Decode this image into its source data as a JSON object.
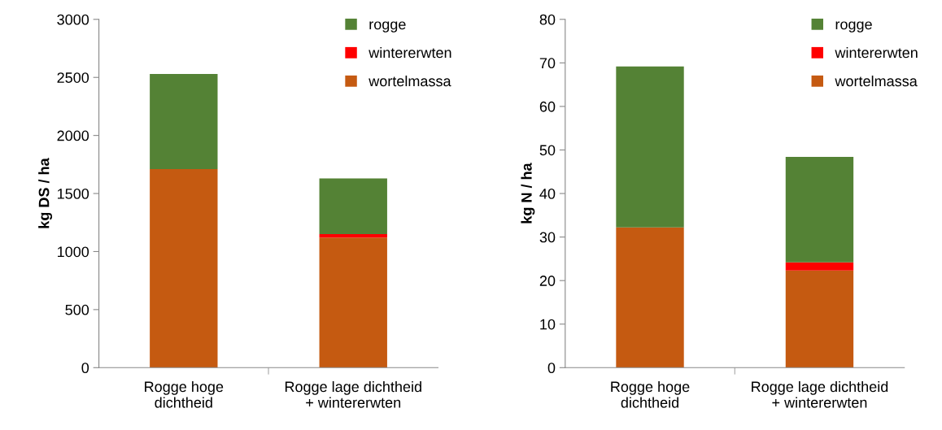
{
  "chart_data": [
    {
      "type": "bar",
      "stacked": true,
      "ylabel": "kg DS / ha",
      "categories": [
        "Rogge hoge\ndichtheid",
        "Rogge lage dichtheid\n+ wintererwten"
      ],
      "series": [
        {
          "name": "wortelmassa",
          "color": "#c55a11",
          "values": [
            1710,
            1120
          ]
        },
        {
          "name": "wintererwten",
          "color": "#ff0000",
          "values": [
            0,
            30
          ]
        },
        {
          "name": "rogge",
          "color": "#548235",
          "values": [
            820,
            480
          ]
        }
      ],
      "ylim": [
        0,
        3000
      ],
      "yticks": [
        0,
        500,
        1000,
        1500,
        2000,
        2500,
        3000
      ],
      "grid": false,
      "legend": "top right"
    },
    {
      "type": "bar",
      "stacked": true,
      "ylabel": "kg N / ha",
      "categories": [
        "Rogge hoge\ndichtheid",
        "Rogge lage dichtheid\n+ wintererwten"
      ],
      "series": [
        {
          "name": "wortelmassa",
          "color": "#c55a11",
          "values": [
            32.2,
            22.3
          ]
        },
        {
          "name": "wintererwten",
          "color": "#ff0000",
          "values": [
            0,
            1.9
          ]
        },
        {
          "name": "rogge",
          "color": "#548235",
          "values": [
            37,
            24.2
          ]
        }
      ],
      "ylim": [
        0,
        80
      ],
      "yticks": [
        0,
        10,
        20,
        30,
        40,
        50,
        60,
        70,
        80
      ],
      "grid": false,
      "legend": "top right"
    }
  ]
}
